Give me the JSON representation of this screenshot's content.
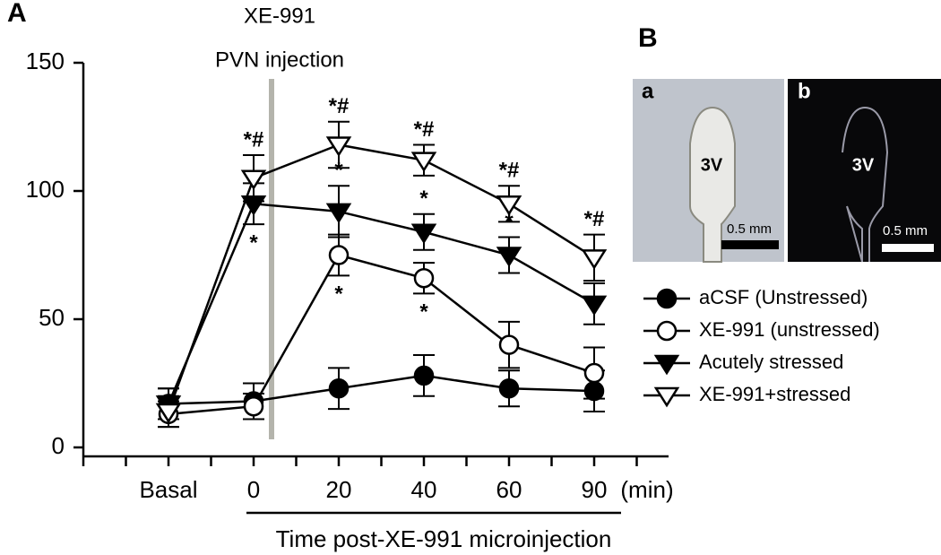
{
  "panel_labels": [
    "A",
    "B"
  ],
  "chart_data": {
    "type": "line",
    "categories": [
      "Basal",
      "0",
      "20",
      "40",
      "60",
      "90"
    ],
    "x_unit": "(min)",
    "xlabel": "Time post-XE-991 microinjection",
    "annotation": [
      "XE-991",
      "PVN injection"
    ],
    "ylim": [
      0,
      150
    ],
    "yticks": [
      0,
      50,
      100,
      150
    ],
    "grid": false,
    "series": [
      {
        "name": "aCSF (Unstressed)",
        "color": "#000000",
        "marker": "circle",
        "filled": true,
        "values": [
          17,
          18,
          23,
          28,
          23,
          22
        ],
        "error": [
          6,
          7,
          8,
          8,
          7,
          8
        ],
        "significance": [
          null,
          null,
          null,
          null,
          null,
          null
        ]
      },
      {
        "name": "XE-991 (unstressed)",
        "color": "#000000",
        "marker": "circle",
        "filled": false,
        "values": [
          13,
          16,
          75,
          66,
          40,
          29
        ],
        "error": [
          5,
          5,
          8,
          6,
          9,
          10
        ],
        "significance": [
          null,
          null,
          "*",
          "*",
          null,
          null
        ],
        "significance_side": [
          "below",
          "below",
          "below",
          "below",
          "below",
          "below"
        ]
      },
      {
        "name": "Acutely stressed",
        "color": "#000000",
        "marker": "triangle",
        "filled": true,
        "values": [
          17,
          95,
          92,
          84,
          75,
          56
        ],
        "error": [
          6,
          8,
          10,
          7,
          7,
          8
        ],
        "significance": [
          null,
          "*",
          "*",
          "*",
          "*",
          null
        ],
        "significance_side": [
          "above",
          "below",
          "above",
          "above",
          "above",
          "above"
        ]
      },
      {
        "name": "XE-991+stressed",
        "color": "#000000",
        "marker": "triangle",
        "filled": false,
        "values": [
          14,
          105,
          118,
          112,
          95,
          74
        ],
        "error": [
          6,
          9,
          9,
          6,
          7,
          9
        ],
        "significance": [
          null,
          "*#",
          "*#",
          "*#",
          "*#",
          "*#"
        ],
        "significance_side": [
          "above",
          "above",
          "above",
          "above",
          "above",
          "above"
        ]
      }
    ]
  },
  "images": {
    "a": {
      "label": "a",
      "region": "3V",
      "scale": "0.5 mm"
    },
    "b": {
      "label": "b",
      "region": "3V",
      "scale": "0.5 mm"
    }
  }
}
